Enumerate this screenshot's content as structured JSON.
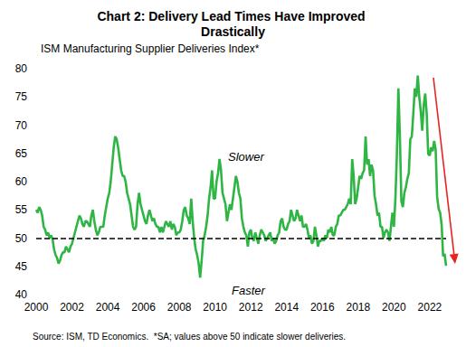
{
  "chart_data": {
    "type": "line",
    "title": "Chart 2: Delivery Lead Times Have Improved Drastically",
    "subtitle": "ISM Manufacturing Supplier Deliveries Index*",
    "source": "Source: ISM, TD Economics.  *SA; values above 50 indicate slower deliveries.",
    "annotations": [
      "Slower",
      "Faster"
    ],
    "reference_line": {
      "value": 50,
      "line_style": "dashed"
    },
    "categories": [
      "2000",
      null,
      null,
      null,
      null,
      null,
      null,
      null,
      null,
      null,
      null,
      null,
      null,
      null,
      null,
      null,
      null,
      null,
      null,
      null,
      null,
      null,
      null,
      null,
      "2002",
      null,
      null,
      null,
      null,
      null,
      null,
      null,
      null,
      null,
      null,
      null,
      null,
      null,
      null,
      null,
      null,
      null,
      null,
      null,
      null,
      null,
      null,
      null,
      "2004",
      null,
      null,
      null,
      null,
      null,
      null,
      null,
      null,
      null,
      null,
      null,
      null,
      null,
      null,
      null,
      null,
      null,
      null,
      null,
      null,
      null,
      null,
      null,
      "2006",
      null,
      null,
      null,
      null,
      null,
      null,
      null,
      null,
      null,
      null,
      null,
      null,
      null,
      null,
      null,
      null,
      null,
      null,
      null,
      null,
      null,
      null,
      null,
      "2008",
      null,
      null,
      null,
      null,
      null,
      null,
      null,
      null,
      null,
      null,
      null,
      null,
      null,
      null,
      null,
      null,
      null,
      null,
      null,
      null,
      null,
      null,
      null,
      "2010",
      null,
      null,
      null,
      null,
      null,
      null,
      null,
      null,
      null,
      null,
      null,
      null,
      null,
      null,
      null,
      null,
      null,
      null,
      null,
      null,
      null,
      null,
      null,
      "2012",
      null,
      null,
      null,
      null,
      null,
      null,
      null,
      null,
      null,
      null,
      null,
      null,
      null,
      null,
      null,
      null,
      null,
      null,
      null,
      null,
      null,
      null,
      null,
      "2014",
      null,
      null,
      null,
      null,
      null,
      null,
      null,
      null,
      null,
      null,
      null,
      null,
      null,
      null,
      null,
      null,
      null,
      null,
      null,
      null,
      null,
      null,
      null,
      "2016",
      null,
      null,
      null,
      null,
      null,
      null,
      null,
      null,
      null,
      null,
      null,
      null,
      null,
      null,
      null,
      null,
      null,
      null,
      null,
      null,
      null,
      null,
      null,
      "2018",
      null,
      null,
      null,
      null,
      null,
      null,
      null,
      null,
      null,
      null,
      null,
      null,
      null,
      null,
      null,
      null,
      null,
      null,
      null,
      null,
      null,
      null,
      null,
      "2020",
      null,
      null,
      null,
      null,
      null,
      null,
      null,
      null,
      null,
      null,
      null,
      null,
      null,
      null,
      null,
      null,
      null,
      null,
      null,
      null,
      null,
      null,
      null,
      "2022",
      null,
      null,
      null,
      null,
      null,
      null,
      null,
      null,
      null,
      null,
      null
    ],
    "values": [
      55,
      54.5,
      55.5,
      55,
      54,
      52,
      51.5,
      50.5,
      51,
      50,
      50.5,
      49.8,
      48,
      47,
      46.5,
      45.5,
      46,
      47,
      47.5,
      47.5,
      48.5,
      48,
      47.5,
      48.5,
      49,
      50,
      51,
      52,
      53,
      54,
      53.5,
      52.5,
      52,
      53,
      53,
      52.5,
      52,
      54,
      55,
      53,
      51.5,
      50.5,
      51,
      52,
      52,
      52,
      54,
      55.5,
      57,
      58,
      60,
      63,
      66,
      68,
      67.5,
      66,
      64,
      62,
      61,
      61,
      60,
      58,
      57,
      56,
      54,
      52,
      51.5,
      52,
      56,
      58,
      56,
      55,
      54,
      53,
      52.5,
      54,
      55,
      54,
      53,
      53.5,
      52.5,
      52,
      52,
      51,
      52,
      51,
      52,
      53,
      52.5,
      52,
      53,
      51.5,
      52.5,
      52,
      50.5,
      51,
      51,
      51.5,
      53,
      55,
      55.5,
      54,
      53.5,
      52.5,
      57,
      53,
      50,
      48,
      47,
      45.5,
      43,
      46,
      49.5,
      50.5,
      52,
      54,
      57,
      59,
      62,
      57,
      57,
      60,
      61.5,
      64,
      62,
      58,
      57,
      56,
      53,
      54.5,
      56,
      55,
      57,
      59,
      61,
      60,
      58,
      57,
      53.5,
      52,
      51,
      50.5,
      48.5,
      51,
      51.5,
      50,
      49.5,
      51,
      50,
      49,
      50.5,
      51.5,
      51,
      50.5,
      49.5,
      50,
      50.5,
      51,
      49.5,
      50,
      49,
      49.5,
      50.5,
      51,
      53,
      53.5,
      52,
      51.5,
      51.5,
      52.5,
      53,
      55,
      54,
      53,
      53.5,
      55,
      54,
      53,
      54,
      52,
      52,
      52.5,
      51.5,
      50,
      50.5,
      49,
      49.5,
      52,
      50.5,
      48.5,
      49.5,
      49.5,
      50,
      49.5,
      50.5,
      50,
      51.5,
      51,
      52,
      50.5,
      50.5,
      52,
      52.5,
      54,
      54,
      54.5,
      55,
      55,
      55.5,
      56,
      57,
      56,
      64,
      61,
      56,
      57,
      59,
      61,
      60.5,
      61.5,
      62,
      68,
      63,
      64,
      61,
      63,
      62,
      57.5,
      56,
      54,
      54.5,
      52,
      52,
      50,
      51,
      51.5,
      51,
      49.5,
      52,
      54.5,
      52,
      57,
      65,
      76.5,
      68,
      56.5,
      55.5,
      58,
      59,
      60.5,
      61.5,
      67.5,
      68,
      72,
      76.5,
      75,
      78.8,
      75,
      72.5,
      69,
      73.5,
      75.6,
      72,
      64.9,
      64.6,
      66.1,
      65.4,
      67.2,
      65.7,
      57.3,
      55.2,
      54.5,
      52.4,
      46.8,
      47.2,
      45.1
    ],
    "color": "#2eb543",
    "ylim": [
      40,
      80
    ],
    "yticks": [
      40,
      45,
      50,
      55,
      60,
      65,
      70,
      75,
      80
    ],
    "grid": false
  }
}
